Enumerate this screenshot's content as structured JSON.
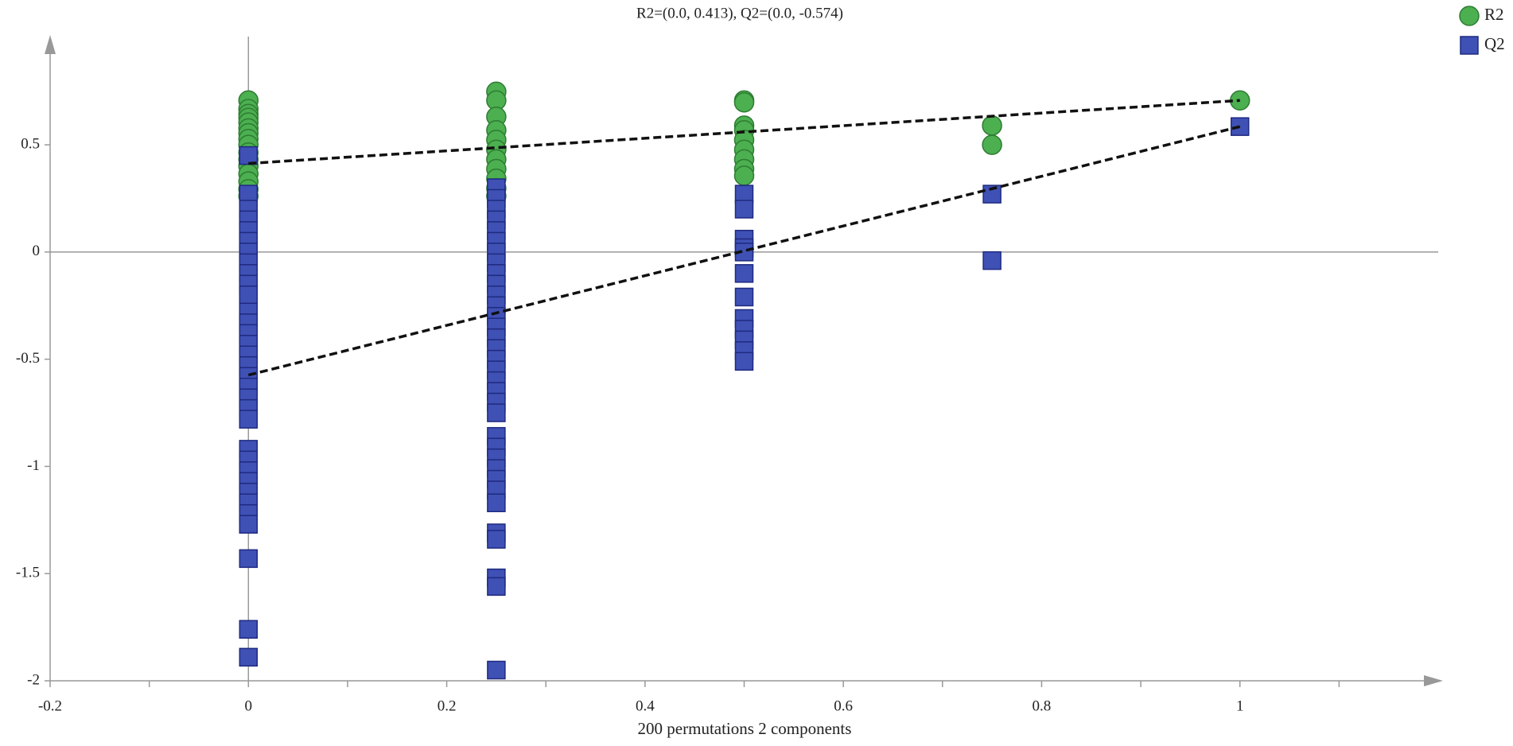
{
  "chart_data": {
    "type": "scatter",
    "title": "R2=(0.0, 0.413), Q2=(0.0, -0.574)",
    "xlabel": "200 permutations 2 components",
    "xlim": [
      -0.2,
      1.2
    ],
    "ylim": [
      -2,
      0.99
    ],
    "xticks": [
      -0.2,
      0,
      0.2,
      0.4,
      0.6,
      0.8,
      1
    ],
    "xminorticks": [
      -0.1,
      0.1,
      0.3,
      0.5,
      0.7,
      0.9,
      1.1
    ],
    "yticks": [
      -2,
      -1.5,
      -1,
      -0.5,
      0,
      0.5
    ],
    "legend": "top-right",
    "series": [
      {
        "name": "R2",
        "color": "#4caf50",
        "marker": "circle",
        "x": [
          0,
          0,
          0,
          0,
          0,
          0,
          0,
          0,
          0,
          0,
          0,
          0,
          0,
          0,
          0,
          0,
          0.25,
          0.25,
          0.25,
          0.25,
          0.25,
          0.25,
          0.25,
          0.25,
          0.25,
          0.25,
          0.25,
          0.5,
          0.5,
          0.5,
          0.5,
          0.5,
          0.5,
          0.5,
          0.5,
          0.5,
          0.75,
          0.75,
          1
        ],
        "values": [
          0.707,
          0.667,
          0.644,
          0.626,
          0.604,
          0.577,
          0.554,
          0.527,
          0.5,
          0.464,
          0.432,
          0.401,
          0.365,
          0.329,
          0.293,
          0.261,
          0.748,
          0.707,
          0.631,
          0.568,
          0.523,
          0.477,
          0.432,
          0.387,
          0.342,
          0.297,
          0.261,
          0.707,
          0.698,
          0.59,
          0.568,
          0.523,
          0.477,
          0.432,
          0.387,
          0.356,
          0.59,
          0.5,
          0.707
        ]
      },
      {
        "name": "Q2",
        "color": "#3f51b5",
        "marker": "square",
        "x": [
          0,
          0,
          0,
          0,
          0,
          0,
          0,
          0,
          0,
          0,
          0,
          0,
          0,
          0,
          0,
          0,
          0,
          0,
          0,
          0,
          0,
          0,
          0,
          0,
          0,
          0,
          0,
          0,
          0,
          0,
          0,
          0,
          0,
          0.25,
          0.25,
          0.25,
          0.25,
          0.25,
          0.25,
          0.25,
          0.25,
          0.25,
          0.25,
          0.25,
          0.25,
          0.25,
          0.25,
          0.25,
          0.25,
          0.25,
          0.25,
          0.25,
          0.25,
          0.25,
          0.25,
          0.25,
          0.25,
          0.25,
          0.25,
          0.25,
          0.25,
          0.25,
          0.25,
          0.25,
          0.25,
          0.25,
          0.25,
          0.5,
          0.5,
          0.5,
          0.5,
          0.5,
          0.5,
          0.5,
          0.5,
          0.5,
          0.5,
          0.5,
          0.5,
          0.75,
          0.75,
          1
        ],
        "values": [
          0.45,
          0.27,
          0.2,
          0.15,
          0.1,
          0.05,
          0,
          -0.05,
          -0.1,
          -0.15,
          -0.2,
          -0.28,
          -0.33,
          -0.38,
          -0.43,
          -0.48,
          -0.53,
          -0.58,
          -0.63,
          -0.68,
          -0.73,
          -0.78,
          -0.92,
          -0.97,
          -1.02,
          -1.07,
          -1.12,
          -1.17,
          -1.22,
          -1.27,
          -1.43,
          -1.76,
          -1.89,
          0.3,
          0.25,
          0.2,
          0.15,
          0.1,
          0.05,
          0,
          -0.05,
          -0.1,
          -0.15,
          -0.2,
          -0.25,
          -0.3,
          -0.35,
          -0.4,
          -0.45,
          -0.5,
          -0.55,
          -0.6,
          -0.65,
          -0.7,
          -0.75,
          -0.86,
          -0.91,
          -0.96,
          -1.01,
          -1.06,
          -1.11,
          -1.17,
          -1.31,
          -1.34,
          -1.52,
          -1.56,
          -1.95,
          0.27,
          0.2,
          0.06,
          0.02,
          0,
          -0.1,
          -0.21,
          -0.31,
          -0.36,
          -0.41,
          -0.46,
          -0.51,
          0.27,
          -0.04,
          0.585
        ]
      }
    ],
    "lines": [
      {
        "x": [
          0,
          1
        ],
        "values": [
          0.413,
          0.707
        ]
      },
      {
        "x": [
          0,
          1
        ],
        "values": [
          -0.574,
          0.585
        ]
      }
    ]
  }
}
